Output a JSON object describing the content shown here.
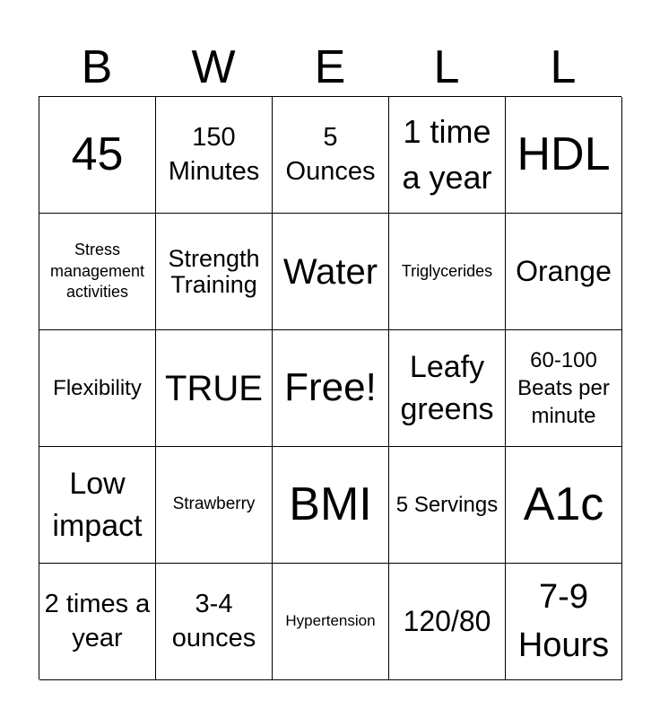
{
  "header": [
    "B",
    "W",
    "E",
    "L",
    "L"
  ],
  "grid": [
    [
      "45",
      "150 Minutes",
      "5 Ounces",
      "1 time a year",
      "HDL"
    ],
    [
      "Stress management activities",
      "Strength Training",
      "Water",
      "Triglycerides",
      "Orange"
    ],
    [
      "Flexibility",
      "TRUE",
      "Free!",
      "Leafy greens",
      "60-100 Beats per minute"
    ],
    [
      "Low impact",
      "Strawberry",
      "BMI",
      "5 Servings",
      "A1c"
    ],
    [
      "2 times a year",
      "3-4 ounces",
      "Hypertension",
      "120/80",
      "7-9 Hours"
    ]
  ]
}
